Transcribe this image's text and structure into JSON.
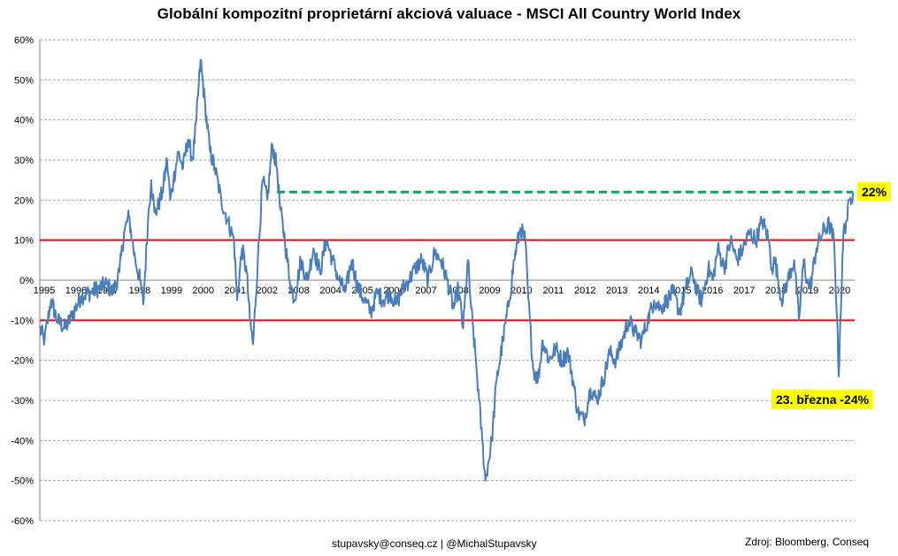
{
  "chart_data": {
    "type": "line",
    "title": "Globální kompozitní proprietární akciová valuace - MSCI All Country World Index",
    "xlabel": "",
    "ylabel": "",
    "ylim": [
      -60,
      60
    ],
    "y_ticks": [
      "60%",
      "50%",
      "40%",
      "30%",
      "20%",
      "10%",
      "0%",
      "-10%",
      "-20%",
      "-30%",
      "-40%",
      "-50%",
      "-60%"
    ],
    "x_tick_labels": [
      "1995",
      "1996",
      "1997",
      "1998",
      "1999",
      "2000",
      "2001",
      "2002",
      "2008",
      "2004",
      "2005",
      "2006",
      "2007",
      "2008",
      "2009",
      "2010",
      "2011",
      "2012",
      "2013",
      "2014",
      "2015",
      "2016",
      "2017",
      "2018",
      "2019",
      "2020"
    ],
    "xlim": [
      1995.0,
      2020.6
    ],
    "grid": true,
    "series_color": "#4a7ebb",
    "series": [
      {
        "x": [
          1995.0,
          1995.15,
          1995.35,
          1995.55,
          1995.8,
          1996.0,
          1996.3,
          1996.6,
          1996.85,
          1997.1,
          1997.3,
          1997.5,
          1997.65,
          1997.8,
          1997.9,
          1998.0,
          1998.15,
          1998.25,
          1998.4,
          1998.5,
          1998.6,
          1998.7,
          1998.85,
          1999.0,
          1999.1,
          1999.2,
          1999.35,
          1999.5,
          1999.65,
          1999.8,
          1999.92,
          2000.05,
          2000.2,
          2000.35,
          2000.5,
          2000.7,
          2000.9,
          2001.1,
          2001.2,
          2001.35,
          2001.5,
          2001.6,
          2001.7,
          2001.85,
          2002.0,
          2002.15,
          2002.3,
          2002.45,
          2002.55,
          2002.7,
          2002.85,
          2003.0,
          2003.2,
          2003.4,
          2003.6,
          2003.8,
          2004.0,
          2004.2,
          2004.4,
          2004.6,
          2004.8,
          2005.0,
          2005.2,
          2005.4,
          2005.6,
          2005.8,
          2006.0,
          2006.2,
          2006.4,
          2006.6,
          2006.8,
          2007.0,
          2007.2,
          2007.4,
          2007.6,
          2007.8,
          2008.0,
          2008.15,
          2008.3,
          2008.45,
          2008.55,
          2008.7,
          2008.8,
          2008.9,
          2009.0,
          2009.2,
          2009.35,
          2009.55,
          2009.75,
          2009.9,
          2010.1,
          2010.25,
          2010.35,
          2010.5,
          2010.65,
          2010.8,
          2011.0,
          2011.2,
          2011.4,
          2011.6,
          2011.75,
          2011.9,
          2012.1,
          2012.3,
          2012.5,
          2012.7,
          2012.9,
          2013.1,
          2013.3,
          2013.5,
          2013.7,
          2013.9,
          2014.1,
          2014.3,
          2014.5,
          2014.7,
          2014.9,
          2015.1,
          2015.3,
          2015.5,
          2015.65,
          2015.8,
          2016.0,
          2016.15,
          2016.3,
          2016.5,
          2016.7,
          2016.9,
          2017.1,
          2017.3,
          2017.5,
          2017.7,
          2017.9,
          2018.0,
          2018.1,
          2018.3,
          2018.5,
          2018.7,
          2018.85,
          2019.0,
          2019.1,
          2019.2,
          2019.4,
          2019.6,
          2019.8,
          2019.95,
          2020.05,
          2020.1,
          2020.15,
          2020.2,
          2020.25,
          2020.35,
          2020.45,
          2020.55
        ],
        "values": [
          -12,
          -15,
          -5,
          -10,
          -12,
          -9,
          -4,
          -3,
          -2,
          -1,
          -3,
          2,
          12,
          16,
          10,
          5,
          0,
          -6,
          15,
          25,
          17,
          18,
          22,
          30,
          20,
          25,
          32,
          28,
          35,
          30,
          40,
          55,
          43,
          32,
          28,
          20,
          15,
          10,
          -5,
          8,
          2,
          -10,
          -16,
          5,
          25,
          20,
          34,
          28,
          18,
          10,
          0,
          -5,
          5,
          0,
          8,
          2,
          10,
          5,
          0,
          -3,
          5,
          -2,
          -5,
          -8,
          -3,
          -5,
          -3,
          -6,
          -2,
          0,
          3,
          5,
          0,
          7,
          5,
          0,
          -7,
          -2,
          -12,
          5,
          -7,
          -20,
          -30,
          -40,
          -50,
          -40,
          -25,
          -15,
          -5,
          5,
          13,
          10,
          -5,
          -22,
          -25,
          -15,
          -20,
          -17,
          -20,
          -18,
          -25,
          -33,
          -35,
          -27,
          -30,
          -25,
          -18,
          -20,
          -15,
          -10,
          -13,
          -15,
          -10,
          -5,
          -7,
          -5,
          -3,
          -8,
          -2,
          2,
          -3,
          -5,
          3,
          0,
          8,
          3,
          10,
          5,
          8,
          12,
          10,
          15,
          10,
          3,
          5,
          -5,
          0,
          5,
          -10,
          5,
          0,
          -2,
          8,
          12,
          14,
          10,
          -10,
          -24,
          -10,
          0,
          12,
          15,
          20,
          22
        ]
      }
    ],
    "reference_lines": [
      {
        "y": 10,
        "color": "#ff0000"
      },
      {
        "y": -10,
        "color": "#ff0000"
      },
      {
        "y": 22,
        "x_from": 2002.45,
        "x_to": 2020.55,
        "color": "#00b050",
        "style": "dashed"
      }
    ],
    "annotations": [
      {
        "text": "22%",
        "x": 2020.55,
        "y": 22
      },
      {
        "text": "23. března -24%",
        "x": 2020.15,
        "y": -24
      }
    ]
  },
  "footer": {
    "contact": "stupavsky@conseq.cz  |  @MichalStupavsky",
    "source": "Zdroj: Bloomberg, Conseq"
  },
  "colors": {
    "line": "#4a7ebb",
    "band": "#ff0000",
    "dashed": "#00b050",
    "label_bg": "#ffff00"
  }
}
